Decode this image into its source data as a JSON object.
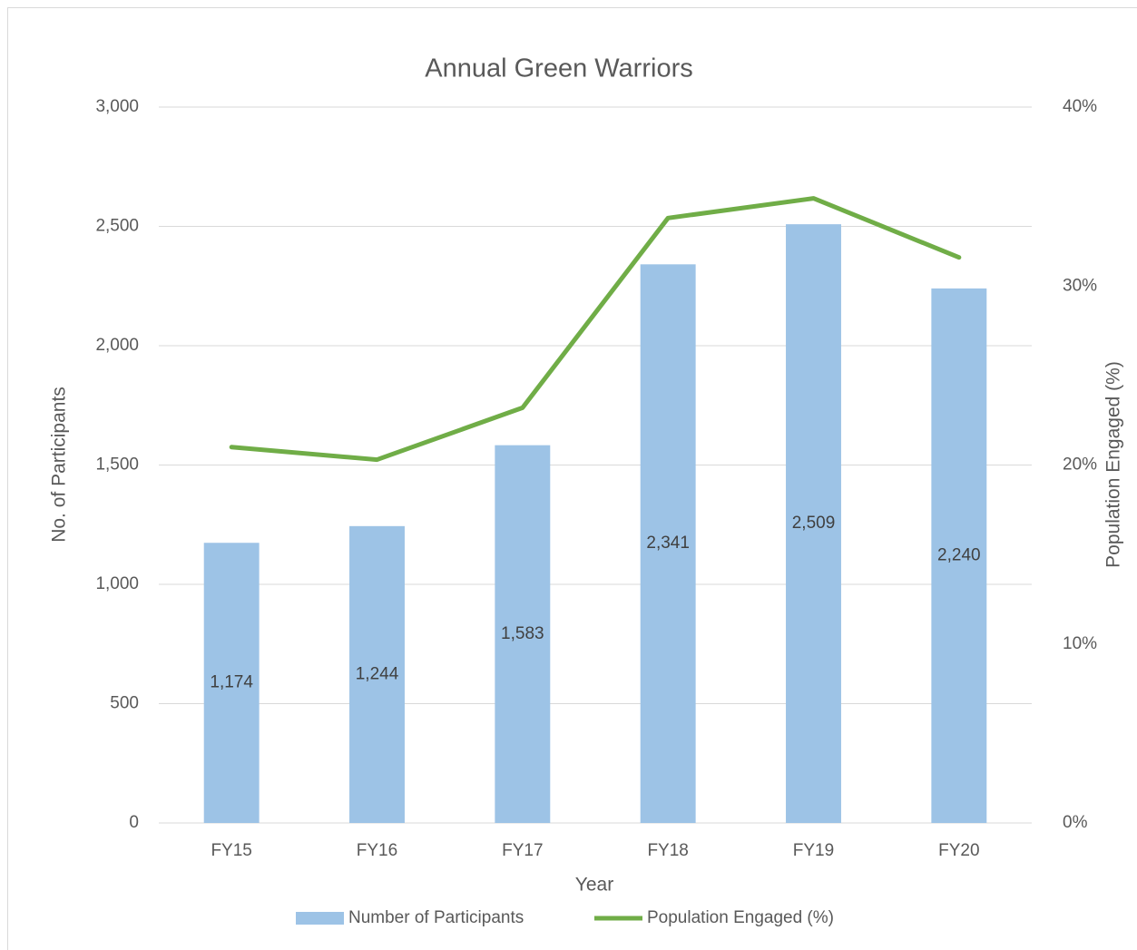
{
  "chart_data": {
    "type": "bar",
    "title": "Annual Green Warriors",
    "x_label": "Year",
    "y_label": "No. of Participants",
    "y2_label": "Population Engaged (%)",
    "categories": [
      "FY15",
      "FY16",
      "FY17",
      "FY18",
      "FY19",
      "FY20"
    ],
    "series": [
      {
        "name": "Number of Participants",
        "type": "bar",
        "color": "#9dc3e6",
        "values": [
          1174,
          1244,
          1583,
          2341,
          2509,
          2240
        ],
        "value_labels": [
          "1,174",
          "1,244",
          "1,583",
          "2,341",
          "2,509",
          "2,240"
        ]
      },
      {
        "name": "Population Engaged (%)",
        "type": "line",
        "axis": "y2",
        "color": "#70ad47",
        "values": [
          21,
          20.3,
          23.2,
          33.8,
          34.9,
          31.6
        ]
      }
    ],
    "ylim": [
      0,
      3000
    ],
    "yticks": [
      0,
      500,
      {
        "value": 1000,
        "label": "1,000"
      },
      {
        "value": 1500,
        "label": "1,500"
      },
      {
        "value": 2000,
        "label": "2,000"
      },
      {
        "value": 2500,
        "label": "2,500"
      },
      {
        "value": 3000,
        "label": "3,000"
      }
    ],
    "y2lim": [
      0,
      40
    ],
    "y2ticks": [
      {
        "value": 0,
        "label": "0%"
      },
      {
        "value": 10,
        "label": "10%"
      },
      {
        "value": 20,
        "label": "20%"
      },
      {
        "value": 30,
        "label": "30%"
      },
      {
        "value": 40,
        "label": "40%"
      }
    ],
    "grid": true,
    "legend": "bottom"
  }
}
